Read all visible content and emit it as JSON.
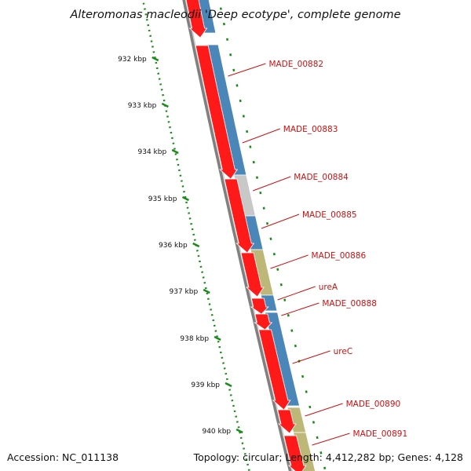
{
  "map": {
    "title": "Alteromonas macleodii 'Deep ecotype', complete genome",
    "accession": "Accession: NC_011138",
    "summary": "Topology: circular; Length: 4,412,282 bp; Genes: 4,128",
    "colors": {
      "backbone": "#808080",
      "tick": "#1a8a1a",
      "reverse_gene": "#ff1a1a",
      "cds_blue": "#4a86b8",
      "cds_gray": "#c8c8c8",
      "cds_olive": "#bdb878",
      "label": "#cc1111"
    }
  },
  "ticks": [
    {
      "label": "932 kbp"
    },
    {
      "label": "933 kbp"
    },
    {
      "label": "934 kbp"
    },
    {
      "label": "935 kbp"
    },
    {
      "label": "936 kbp"
    },
    {
      "label": "937 kbp"
    },
    {
      "label": "938 kbp"
    },
    {
      "label": "939 kbp"
    },
    {
      "label": "940 kbp"
    }
  ],
  "genes": [
    {
      "name": "MADE_00882"
    },
    {
      "name": "MADE_00883"
    },
    {
      "name": "MADE_00884"
    },
    {
      "name": "MADE_00885"
    },
    {
      "name": "MADE_00886"
    },
    {
      "name": "ureA"
    },
    {
      "name": "MADE_00888"
    },
    {
      "name": "ureC"
    },
    {
      "name": "MADE_00890"
    },
    {
      "name": "MADE_00891"
    }
  ]
}
